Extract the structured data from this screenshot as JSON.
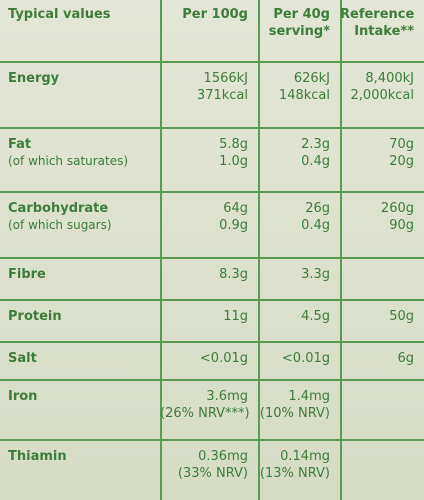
{
  "table": {
    "header": [
      [
        "Typical values"
      ],
      [
        "Per 100g"
      ],
      [
        "Per 40g",
        "serving*"
      ],
      [
        "Reference",
        "Intake**"
      ]
    ],
    "rows": [
      {
        "label": [
          "Energy"
        ],
        "cells": [
          [
            "1566kJ",
            "371kcal"
          ],
          [
            "626kJ",
            "148kcal"
          ],
          [
            "8,400kJ",
            "2,000kcal"
          ]
        ]
      },
      {
        "label": [
          "Fat",
          "(of which saturates)"
        ],
        "cells": [
          [
            "5.8g",
            "1.0g"
          ],
          [
            "2.3g",
            "0.4g"
          ],
          [
            "70g",
            "20g"
          ]
        ]
      },
      {
        "label": [
          "Carbohydrate",
          "(of which sugars)"
        ],
        "cells": [
          [
            "64g",
            "0.9g"
          ],
          [
            "26g",
            "0.4g"
          ],
          [
            "260g",
            "90g"
          ]
        ]
      },
      {
        "label": [
          "Fibre"
        ],
        "cells": [
          [
            "8.3g"
          ],
          [
            "3.3g"
          ],
          []
        ]
      },
      {
        "label": [
          "Protein"
        ],
        "cells": [
          [
            "11g"
          ],
          [
            "4.5g"
          ],
          [
            "50g"
          ]
        ]
      },
      {
        "label": [
          "Salt"
        ],
        "cells": [
          [
            "<0.01g"
          ],
          [
            "<0.01g"
          ],
          [
            "6g"
          ]
        ]
      },
      {
        "label": [
          "Iron"
        ],
        "cells": [
          [
            "3.6mg",
            "(26% NRV***)"
          ],
          [
            "1.4mg",
            "(10% NRV)"
          ],
          []
        ]
      },
      {
        "label": [
          "Thiamin"
        ],
        "cells": [
          [
            "0.36mg",
            "(33% NRV)"
          ],
          [
            "0.14mg",
            "(13% NRV)"
          ],
          []
        ]
      }
    ]
  }
}
